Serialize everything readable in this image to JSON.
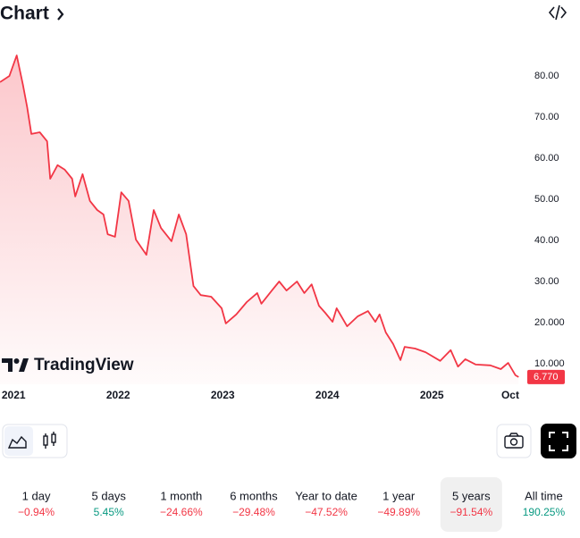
{
  "header": {
    "title": "Chart"
  },
  "chart_data": {
    "type": "area",
    "color": "#f23645",
    "x": [
      2020.87,
      2020.96,
      2021.03,
      2021.09,
      2021.13,
      2021.17,
      2021.25,
      2021.32,
      2021.35,
      2021.42,
      2021.49,
      2021.56,
      2021.59,
      2021.66,
      2021.73,
      2021.8,
      2021.86,
      2021.9,
      2021.97,
      2022.03,
      2022.1,
      2022.17,
      2022.27,
      2022.34,
      2022.41,
      2022.51,
      2022.58,
      2022.65,
      2022.72,
      2022.79,
      2022.89,
      2022.99,
      2023.03,
      2023.13,
      2023.23,
      2023.33,
      2023.37,
      2023.47,
      2023.54,
      2023.61,
      2023.71,
      2023.78,
      2023.85,
      2023.92,
      2023.98,
      2024.05,
      2024.09,
      2024.19,
      2024.29,
      2024.39,
      2024.46,
      2024.5,
      2024.56,
      2024.63,
      2024.7,
      2024.74,
      2024.84,
      2024.94,
      2025.08,
      2025.18,
      2025.25,
      2025.32,
      2025.42,
      2025.56,
      2025.66,
      2025.73,
      2025.8,
      2025.83
    ],
    "values": [
      78.5,
      80.0,
      85.0,
      77.8,
      72.4,
      65.9,
      66.3,
      64.1,
      55.0,
      58.3,
      57.2,
      55.0,
      50.7,
      56.1,
      49.6,
      47.4,
      46.3,
      41.5,
      40.9,
      51.7,
      49.6,
      40.2,
      36.5,
      47.4,
      43.0,
      39.8,
      46.3,
      41.5,
      28.9,
      26.7,
      26.3,
      23.5,
      19.8,
      22.0,
      25.0,
      27.2,
      24.6,
      27.8,
      30.0,
      27.8,
      30.0,
      27.2,
      29.3,
      24.1,
      22.4,
      20.2,
      23.5,
      19.1,
      21.5,
      22.8,
      20.2,
      22.0,
      17.6,
      14.8,
      10.9,
      14.1,
      13.7,
      12.8,
      10.7,
      13.3,
      9.3,
      11.1,
      9.8,
      9.6,
      8.7,
      10.2,
      7.2,
      6.77
    ],
    "xlim": [
      2020.87,
      2025.87
    ],
    "xticks": [
      {
        "value": 2021,
        "label": "2021"
      },
      {
        "value": 2022,
        "label": "2022"
      },
      {
        "value": 2023,
        "label": "2023"
      },
      {
        "value": 2024,
        "label": "2024"
      },
      {
        "value": 2025,
        "label": "2025"
      },
      {
        "value": 2025.75,
        "label": "Oct"
      }
    ],
    "ylim": [
      5,
      90
    ],
    "yticks": [
      {
        "value": 10,
        "label": "10.000"
      },
      {
        "value": 20,
        "label": "20.000"
      },
      {
        "value": 30,
        "label": "30.00"
      },
      {
        "value": 40,
        "label": "40.00"
      },
      {
        "value": 50,
        "label": "50.00"
      },
      {
        "value": 60,
        "label": "60.00"
      },
      {
        "value": 70,
        "label": "70.00"
      },
      {
        "value": 80,
        "label": "80.00"
      }
    ],
    "grid": false,
    "price_label": {
      "value": 6.77,
      "label": "6.770"
    },
    "watermark": "TradingView"
  },
  "periods": {
    "selected_index": 6,
    "items": [
      {
        "label": "1 day",
        "change": "−0.94%",
        "color": "#f23645"
      },
      {
        "label": "5 days",
        "change": "5.45%",
        "color": "#089981"
      },
      {
        "label": "1 month",
        "change": "−24.66%",
        "color": "#f23645"
      },
      {
        "label": "6 months",
        "change": "−29.48%",
        "color": "#f23645"
      },
      {
        "label": "Year to date",
        "change": "−47.52%",
        "color": "#f23645"
      },
      {
        "label": "1 year",
        "change": "−49.89%",
        "color": "#f23645"
      },
      {
        "label": "5 years",
        "change": "−91.54%",
        "color": "#f23645"
      },
      {
        "label": "All time",
        "change": "190.25%",
        "color": "#089981"
      }
    ]
  }
}
